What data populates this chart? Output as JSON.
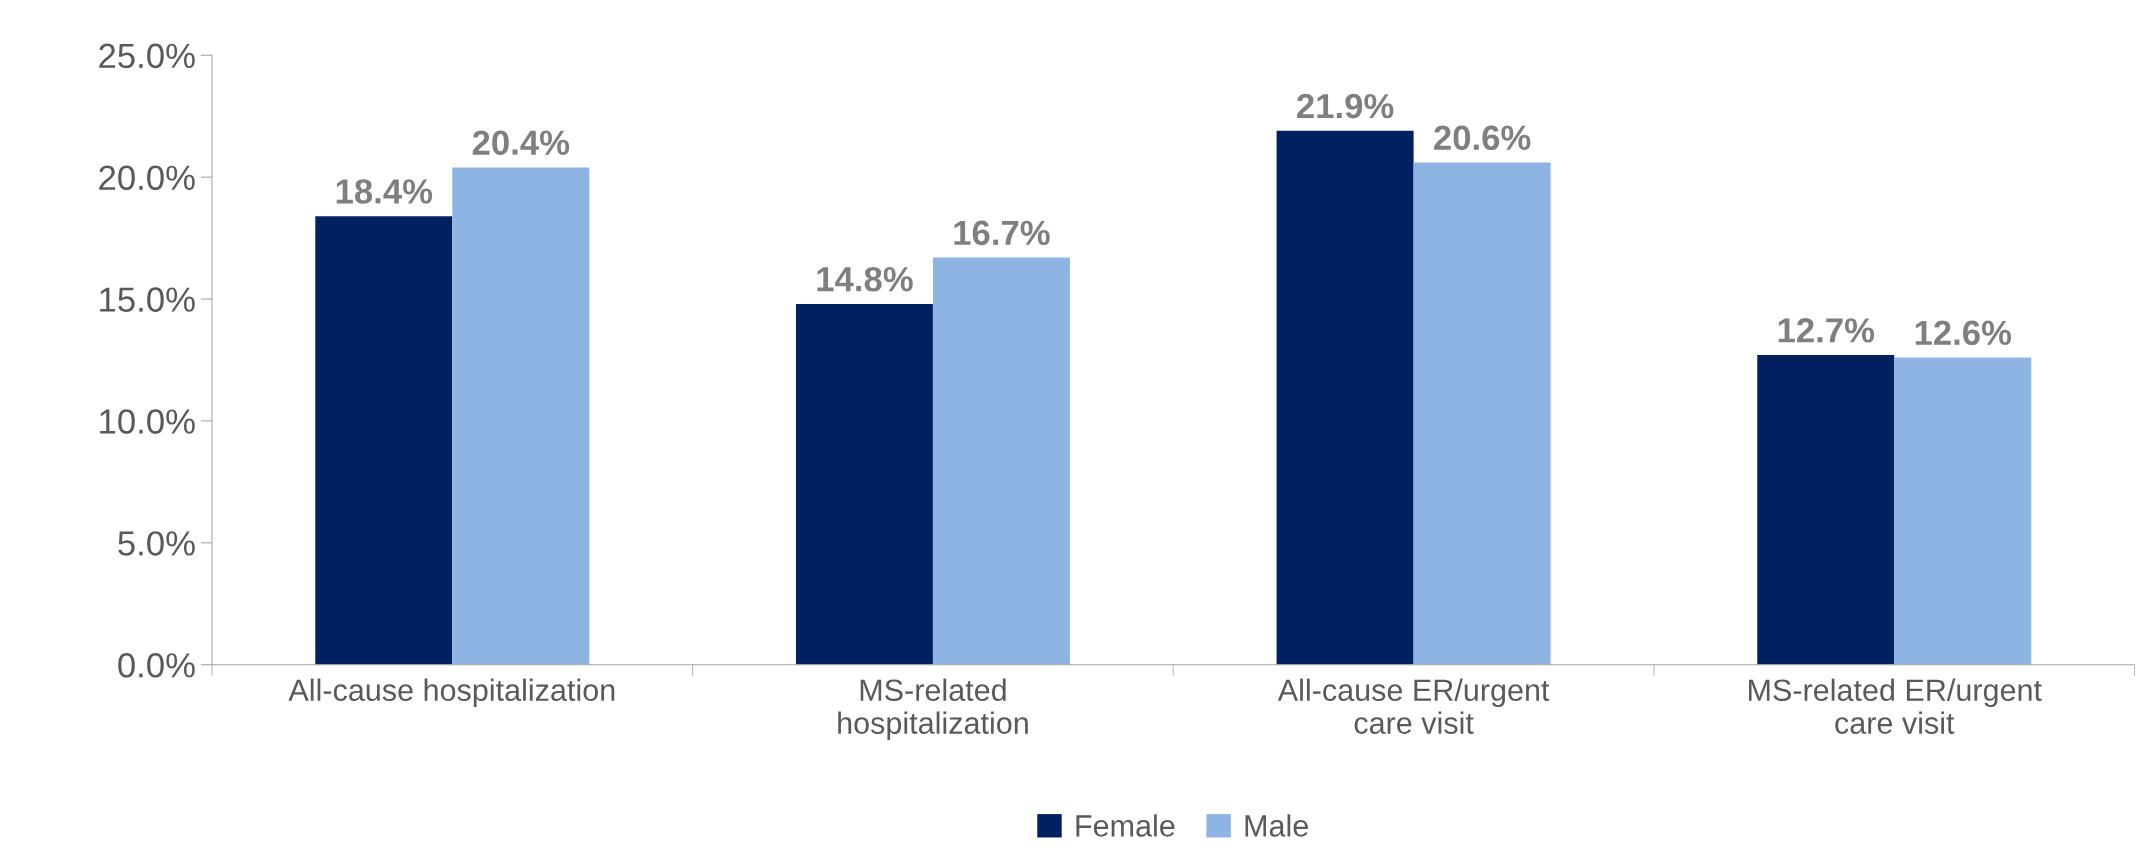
{
  "chart_data": {
    "type": "bar",
    "categories": [
      "All-cause hospitalization",
      "MS-related\nhospitalization",
      "All-cause ER/urgent\ncare visit",
      "MS-related ER/urgent\ncare visit"
    ],
    "series": [
      {
        "name": "Female",
        "color": "#002060",
        "values": [
          18.4,
          14.8,
          21.9,
          12.7
        ],
        "value_labels": [
          "18.4%",
          "14.8%",
          "21.9%",
          "12.7%"
        ]
      },
      {
        "name": "Male",
        "color": "#8db4e2",
        "values": [
          20.4,
          16.7,
          20.6,
          12.6
        ],
        "value_labels": [
          "20.4%",
          "16.7%",
          "20.6%",
          "12.6%"
        ]
      }
    ],
    "ylim": [
      0,
      25
    ],
    "yticks": [
      {
        "value": 0,
        "label": "0.0%"
      },
      {
        "value": 5,
        "label": "5.0%"
      },
      {
        "value": 10,
        "label": "10.0%"
      },
      {
        "value": 15,
        "label": "15.0%"
      },
      {
        "value": 20,
        "label": "20.0%"
      },
      {
        "value": 25,
        "label": "25.0%"
      }
    ],
    "grid": false,
    "legend": "bottom"
  }
}
